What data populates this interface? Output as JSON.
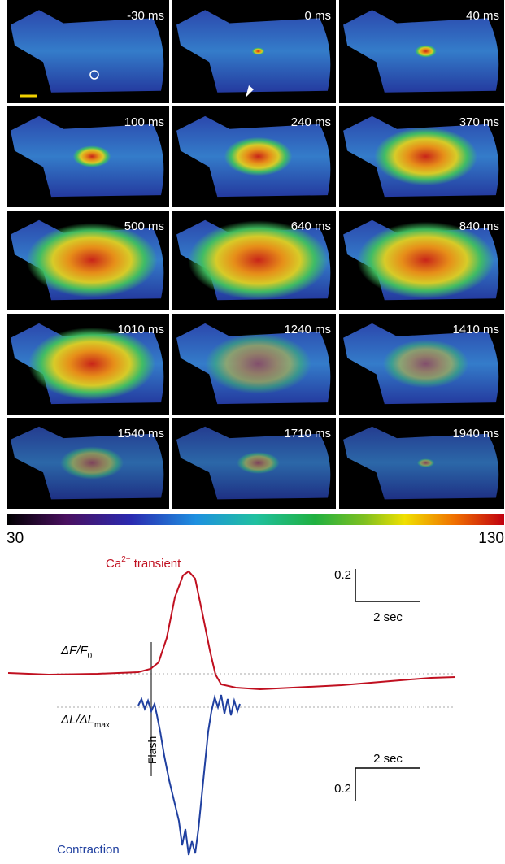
{
  "panels": [
    "-30 ms",
    "0 ms",
    "40 ms",
    "100 ms",
    "240 ms",
    "370 ms",
    "500 ms",
    "640 ms",
    "840 ms",
    "1010 ms",
    "1240 ms",
    "1410 ms",
    "1540 ms",
    "1710 ms",
    "1940 ms"
  ],
  "colorbar": {
    "min": 30,
    "max": 130
  },
  "traces": {
    "calcium_label": {
      "main": "Ca",
      "sup": "2+",
      "rest": " transient"
    },
    "df_label": {
      "main": "ΔF/F",
      "sub": "0"
    },
    "dl_label": {
      "main": "ΔL/ΔL",
      "sub": "max"
    },
    "flash": "Flash",
    "contraction_label": "Contraction",
    "scale_top": {
      "y": 0.2,
      "x": "2 sec"
    },
    "scale_bottom": {
      "y": 0.2,
      "x": "2 sec"
    }
  }
}
